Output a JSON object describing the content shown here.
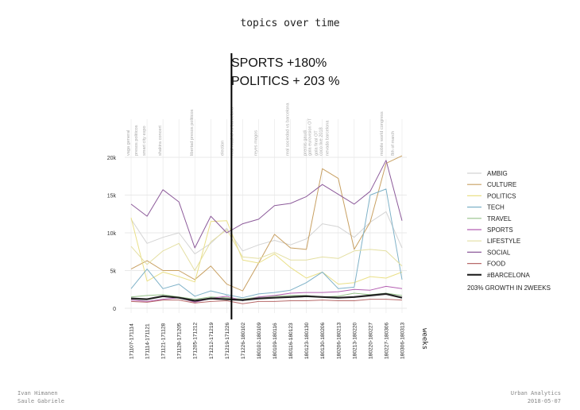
{
  "page": {
    "title": "topics over time",
    "authors": [
      "Ivan Himanen",
      "Saule Gabriele"
    ],
    "org": "Urban Analytics",
    "date": "2018-05-07"
  },
  "callout": {
    "line1": "SPORTS +180%",
    "line2": "POLITICS + 203 %"
  },
  "chart_data": {
    "type": "line",
    "xlabel": "weeks",
    "ylabel": "",
    "ylim": [
      0,
      21000
    ],
    "yticks": [
      0,
      5000,
      10000,
      15000,
      20000
    ],
    "ytick_labels": [
      "0",
      "5k",
      "10k",
      "15k",
      "20k"
    ],
    "grid": true,
    "legend_position": "right",
    "categories": [
      "171107-171114",
      "171114-171121",
      "171121-171128",
      "171128-171205",
      "171205-171212",
      "171212-171219",
      "171219-171226",
      "171226-180102",
      "180102-180109",
      "180109-180116",
      "180116-180123",
      "180123-180130",
      "180130-180206",
      "180206-180213",
      "180213-180220",
      "180220-180227",
      "180227-180306",
      "180306-180313"
    ],
    "events": [
      {
        "label": "vaga general",
        "index": 0
      },
      {
        "label": "presos politicos",
        "index": 0.5
      },
      {
        "label": "smart city expo",
        "index": 1
      },
      {
        "label": "shakira concert",
        "index": 2
      },
      {
        "label": "libertad presos politicos",
        "index": 4
      },
      {
        "label": "election",
        "index": 5.9
      },
      {
        "label": "real madrid vs barcelona",
        "index": 6.5
      },
      {
        "label": "reyes magos",
        "index": 8
      },
      {
        "label": "real sociedad vs barcelona",
        "index": 10
      },
      {
        "label": "premis gaudi",
        "index": 11.1
      },
      {
        "label": "gala eurovision OT",
        "index": 11.4
      },
      {
        "label": "gala final OT",
        "index": 11.8
      },
      {
        "label": "coco live 2018",
        "index": 12.1
      },
      {
        "label": "nevada barcelona",
        "index": 12.5
      },
      {
        "label": "mobile world congress",
        "index": 15.9
      },
      {
        "label": "8th of march",
        "index": 16.6
      }
    ],
    "marker": {
      "index": 6.3,
      "color": "#000000"
    },
    "series": [
      {
        "name": "AMBIG",
        "color": "#d4d4d4",
        "values": [
          11800,
          8600,
          9400,
          10000,
          7200,
          8600,
          10600,
          7600,
          8400,
          9000,
          8400,
          9200,
          11200,
          10800,
          9400,
          11400,
          12800,
          8000
        ]
      },
      {
        "name": "CULTURE",
        "color": "#c8a062",
        "values": [
          5200,
          6300,
          5000,
          5000,
          3800,
          5600,
          3200,
          2300,
          6000,
          9800,
          8000,
          7800,
          18500,
          17200,
          7800,
          11400,
          19200,
          20200
        ]
      },
      {
        "name": "POLITICS",
        "color": "#eae088",
        "values": [
          12000,
          3600,
          4800,
          4200,
          3500,
          11500,
          11600,
          6400,
          6000,
          7200,
          5400,
          4000,
          4800,
          3200,
          3400,
          4200,
          4000,
          4800
        ]
      },
      {
        "name": "TECH",
        "color": "#7fb2c8",
        "values": [
          2600,
          5200,
          2600,
          3200,
          1600,
          2300,
          1800,
          1400,
          1900,
          2100,
          2400,
          3400,
          4800,
          2600,
          2800,
          15000,
          15800,
          3800
        ]
      },
      {
        "name": "TRAVEL",
        "color": "#96c28a",
        "values": [
          1500,
          1700,
          1800,
          1500,
          1200,
          1500,
          1400,
          1200,
          1500,
          1600,
          1700,
          1700,
          1500,
          1600,
          2000,
          1800,
          2000,
          1700
        ]
      },
      {
        "name": "SPORTS",
        "color": "#b45fb2",
        "values": [
          1100,
          900,
          1200,
          1400,
          800,
          1300,
          1600,
          1000,
          1500,
          1700,
          2000,
          2100,
          2100,
          2200,
          2500,
          2400,
          2900,
          2600
        ]
      },
      {
        "name": "LIFESTYLE",
        "color": "#e4dfa2",
        "values": [
          8200,
          5800,
          7600,
          8600,
          5000,
          8800,
          10400,
          6800,
          6600,
          7400,
          6400,
          6400,
          6800,
          6600,
          7600,
          7800,
          7600,
          5600
        ]
      },
      {
        "name": "SOCIAL",
        "color": "#8c5a9a",
        "values": [
          13800,
          12200,
          15700,
          14100,
          8000,
          12200,
          10000,
          11200,
          11800,
          13600,
          13900,
          14800,
          16400,
          15100,
          13800,
          15500,
          19600,
          11600
        ]
      },
      {
        "name": "FOOD",
        "color": "#b86a6a",
        "values": [
          900,
          800,
          1100,
          1100,
          700,
          900,
          1000,
          600,
          900,
          900,
          1000,
          1000,
          1100,
          1000,
          1000,
          1200,
          1200,
          1100
        ]
      },
      {
        "name": "#BARCELONA",
        "color": "#222222",
        "values": [
          1300,
          1200,
          1600,
          1400,
          1000,
          1300,
          1200,
          1100,
          1300,
          1400,
          1500,
          1600,
          1500,
          1400,
          1500,
          1700,
          1900,
          1400
        ],
        "width": 2.2
      }
    ],
    "legend_note": "203%  GROWTH IN 2WEEKS"
  }
}
